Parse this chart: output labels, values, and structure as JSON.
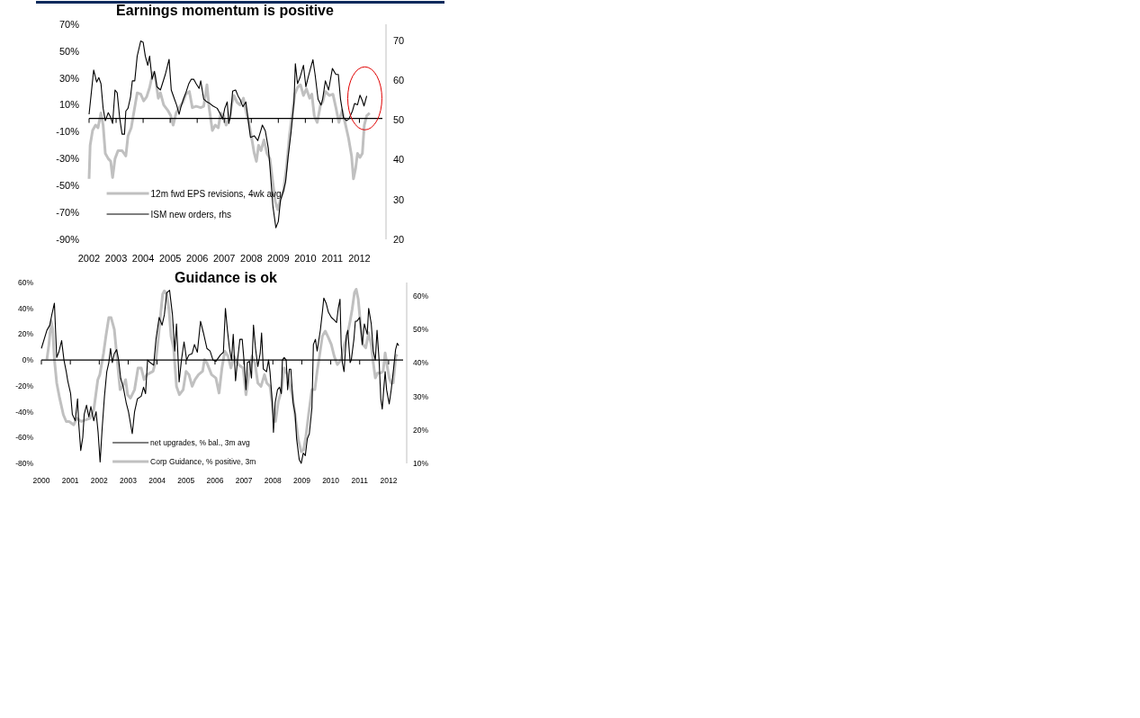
{
  "chart_data": [
    {
      "type": "line",
      "title": "Earnings momentum is positive",
      "xlim": [
        2002,
        2012.85
      ],
      "xticks": [
        2002,
        2003,
        2004,
        2005,
        2006,
        2007,
        2008,
        2009,
        2010,
        2011,
        2012
      ],
      "ylim": [
        -90,
        70
      ],
      "yticks": [
        {
          "value": 70,
          "label": "70%"
        },
        {
          "value": 50,
          "label": "50%"
        },
        {
          "value": 30,
          "label": "30%"
        },
        {
          "value": 10,
          "label": "10%"
        },
        {
          "value": -10,
          "label": "-10%"
        },
        {
          "value": -30,
          "label": "-30%"
        },
        {
          "value": -50,
          "label": "-50%"
        },
        {
          "value": -70,
          "label": "-70%"
        },
        {
          "value": -90,
          "label": "-90%"
        }
      ],
      "y2lim": [
        20,
        74
      ],
      "y2ticks": [
        20,
        30,
        40,
        50,
        60,
        70
      ],
      "legend": "bottom left",
      "series": [
        {
          "name": "12m fwd EPS revisions, 4wk avg",
          "color": "#c0c0c0",
          "x": [
            2002.0,
            2002.04,
            2002.13,
            2002.24,
            2002.33,
            2002.44,
            2002.52,
            2002.6,
            2002.71,
            2002.8,
            2002.87,
            2002.96,
            2003.07,
            2003.22,
            2003.36,
            2003.44,
            2003.56,
            2003.67,
            2003.78,
            2003.91,
            2004.02,
            2004.13,
            2004.24,
            2004.36,
            2004.44,
            2004.56,
            2004.64,
            2004.76,
            2004.91,
            2005.02,
            2005.11,
            2005.22,
            2005.33,
            2005.47,
            2005.58,
            2005.71,
            2005.82,
            2005.96,
            2006.13,
            2006.24,
            2006.36,
            2006.44,
            2006.56,
            2006.67,
            2006.78,
            2006.87,
            2006.98,
            2007.07,
            2007.19,
            2007.27,
            2007.36,
            2007.47,
            2007.58,
            2007.71,
            2007.82,
            2007.91,
            2008.0,
            2008.11,
            2008.19,
            2008.27,
            2008.36,
            2008.47,
            2008.58,
            2008.69,
            2008.78,
            2008.89,
            2008.98,
            2009.08,
            2009.19,
            2009.3,
            2009.41,
            2009.52,
            2009.61,
            2009.71,
            2009.82,
            2009.93,
            2010.04,
            2010.16,
            2010.24,
            2010.33,
            2010.44,
            2010.56,
            2010.64,
            2010.74,
            2010.89,
            2011.02,
            2011.13,
            2011.24,
            2011.36,
            2011.49,
            2011.6,
            2011.71,
            2011.78,
            2011.86,
            2011.93,
            2012.02,
            2012.11,
            2012.18,
            2012.27,
            2012.38
          ],
          "values": [
            -45,
            -20,
            -9,
            -5,
            -7,
            4,
            -5,
            -26,
            -30,
            -32,
            -44,
            -30,
            -24,
            -24,
            -28,
            -13,
            -7,
            6,
            19,
            18,
            13,
            16,
            23,
            34,
            32,
            15,
            19,
            10,
            6,
            2,
            -5,
            4,
            8,
            12,
            18,
            20,
            8,
            9,
            8,
            9,
            25,
            8,
            -9,
            -5,
            -7,
            4,
            2,
            -5,
            0,
            10,
            17,
            12,
            10,
            15,
            4,
            -3,
            -13,
            -26,
            -32,
            -20,
            -24,
            -16,
            -26,
            -30,
            -45,
            -62,
            -68,
            -60,
            -54,
            -37,
            -13,
            4,
            18,
            23,
            25,
            17,
            22,
            15,
            18,
            2,
            -3,
            10,
            12,
            20,
            17,
            18,
            8,
            -3,
            6,
            -5,
            -15,
            -28,
            -45,
            -37,
            -26,
            -29,
            -26,
            -5,
            2,
            4
          ]
        },
        {
          "name": "ISM new orders, rhs",
          "color": "#000000",
          "axis": "y2",
          "x": [
            2002.0,
            2002.17,
            2002.28,
            2002.36,
            2002.44,
            2002.52,
            2002.6,
            2002.71,
            2002.8,
            2002.87,
            2002.96,
            2003.04,
            2003.13,
            2003.22,
            2003.31,
            2003.36,
            2003.44,
            2003.53,
            2003.6,
            2003.69,
            2003.78,
            2003.91,
            2004.0,
            2004.08,
            2004.17,
            2004.24,
            2004.33,
            2004.42,
            2004.51,
            2004.64,
            2004.82,
            2004.96,
            2005.04,
            2005.16,
            2005.24,
            2005.33,
            2005.4,
            2005.49,
            2005.58,
            2005.69,
            2005.78,
            2005.87,
            2005.96,
            2006.07,
            2006.13,
            2006.24,
            2006.36,
            2006.47,
            2006.58,
            2006.74,
            2006.86,
            2006.94,
            2007.02,
            2007.11,
            2007.17,
            2007.24,
            2007.31,
            2007.42,
            2007.51,
            2007.58,
            2007.69,
            2007.8,
            2007.89,
            2007.97,
            2008.11,
            2008.24,
            2008.36,
            2008.41,
            2008.52,
            2008.63,
            2008.69,
            2008.8,
            2008.91,
            2009.0,
            2009.08,
            2009.19,
            2009.27,
            2009.36,
            2009.47,
            2009.58,
            2009.63,
            2009.71,
            2009.8,
            2009.93,
            2010.02,
            2010.1,
            2010.19,
            2010.28,
            2010.36,
            2010.47,
            2010.58,
            2010.64,
            2010.74,
            2010.86,
            2011.0,
            2011.13,
            2011.22,
            2011.3,
            2011.41,
            2011.52,
            2011.61,
            2011.74,
            2011.82,
            2011.93,
            2012.02,
            2012.11,
            2012.17,
            2012.27
          ],
          "values": [
            51.4,
            62.5,
            59.5,
            60.6,
            59.1,
            52.9,
            49.8,
            51.8,
            50.6,
            49.1,
            57.5,
            56.8,
            50.6,
            46.4,
            46.4,
            52.2,
            52.9,
            55.6,
            59.8,
            59.8,
            66,
            69.8,
            69.5,
            66,
            63.7,
            66,
            60.2,
            62.2,
            58.3,
            57.5,
            61.4,
            65.2,
            57.5,
            55.2,
            53.7,
            51.4,
            53.3,
            55.2,
            56.8,
            59.1,
            60.2,
            60.2,
            59.1,
            57.9,
            59.8,
            55.2,
            54.5,
            54.1,
            53.5,
            52.9,
            51.4,
            50.2,
            52.9,
            54.5,
            49.1,
            51.4,
            57.2,
            57.5,
            56,
            55.2,
            53.3,
            54.5,
            49.8,
            45.6,
            46,
            44.8,
            47.5,
            48.7,
            47.2,
            42.9,
            38.3,
            28.3,
            22.9,
            24.5,
            29.8,
            32.2,
            34.5,
            40.6,
            46.8,
            54.5,
            64.1,
            59.1,
            60.6,
            63.7,
            58.3,
            60.6,
            62.9,
            65.1,
            61.4,
            55.2,
            53.7,
            55.2,
            59.8,
            57.5,
            62.9,
            61.4,
            61.4,
            55.2,
            50.6,
            49.8,
            50.2,
            52.2,
            54.1,
            53.8,
            56.2,
            54.8,
            53.5,
            56
          ]
        }
      ]
    },
    {
      "type": "line",
      "title": "Guidance is ok",
      "xlim": [
        2000,
        2012.5
      ],
      "xticks": [
        2000,
        2001,
        2002,
        2003,
        2004,
        2005,
        2006,
        2007,
        2008,
        2009,
        2010,
        2011,
        2012
      ],
      "ylim": [
        -80,
        60
      ],
      "yticks": [
        {
          "value": 60,
          "label": "60%"
        },
        {
          "value": 40,
          "label": "40%"
        },
        {
          "value": 20,
          "label": "20%"
        },
        {
          "value": 0,
          "label": "0%"
        },
        {
          "value": -20,
          "label": "-20%"
        },
        {
          "value": -40,
          "label": "-40%"
        },
        {
          "value": -60,
          "label": "-60%"
        },
        {
          "value": -80,
          "label": "-80%"
        }
      ],
      "y2lim": [
        10,
        64
      ],
      "y2ticks": [
        {
          "value": 60,
          "label": "60%"
        },
        {
          "value": 50,
          "label": "50%"
        },
        {
          "value": 40,
          "label": "40%"
        },
        {
          "value": 30,
          "label": "30%"
        },
        {
          "value": 20,
          "label": "20%"
        },
        {
          "value": 10,
          "label": "10%"
        }
      ],
      "legend": "bottom left",
      "series": [
        {
          "name": "net upgrades, % bal., 3m avg",
          "color": "#000000",
          "x": [
            2000.0,
            2000.19,
            2000.29,
            2000.36,
            2000.45,
            2000.53,
            2000.6,
            2000.7,
            2000.78,
            2000.86,
            2000.91,
            2001.01,
            2001.07,
            2001.17,
            2001.25,
            2001.29,
            2001.36,
            2001.43,
            2001.48,
            2001.56,
            2001.64,
            2001.71,
            2001.81,
            2001.89,
            2001.96,
            2002.03,
            2002.1,
            2002.18,
            2002.26,
            2002.33,
            2002.39,
            2002.45,
            2002.52,
            2002.6,
            2002.67,
            2002.74,
            2002.83,
            2002.93,
            2003.01,
            2003.14,
            2003.22,
            2003.32,
            2003.45,
            2003.53,
            2003.6,
            2003.67,
            2003.76,
            2003.88,
            2003.96,
            2004.07,
            2004.17,
            2004.25,
            2004.33,
            2004.43,
            2004.53,
            2004.61,
            2004.67,
            2004.76,
            2004.84,
            2004.93,
            2005.02,
            2005.1,
            2005.21,
            2005.29,
            2005.39,
            2005.5,
            2005.6,
            2005.72,
            2005.83,
            2005.93,
            2006.03,
            2006.19,
            2006.29,
            2006.36,
            2006.43,
            2006.5,
            2006.57,
            2006.63,
            2006.71,
            2006.78,
            2006.86,
            2006.94,
            2007.02,
            2007.07,
            2007.12,
            2007.19,
            2007.26,
            2007.33,
            2007.4,
            2007.48,
            2007.56,
            2007.61,
            2007.67,
            2007.78,
            2007.85,
            2007.9,
            2007.98,
            2008.02,
            2008.08,
            2008.16,
            2008.23,
            2008.29,
            2008.33,
            2008.39,
            2008.46,
            2008.51,
            2008.57,
            2008.62,
            2008.7,
            2008.77,
            2008.82,
            2008.91,
            2008.98,
            2009.05,
            2009.12,
            2009.19,
            2009.26,
            2009.35,
            2009.4,
            2009.47,
            2009.53,
            2009.64,
            2009.71,
            2009.76,
            2009.84,
            2009.92,
            2010.02,
            2010.12,
            2010.2,
            2010.26,
            2010.32,
            2010.36,
            2010.4,
            2010.46,
            2010.54,
            2010.59,
            2010.67,
            2010.71,
            2010.8,
            2010.85,
            2010.9,
            2011.0,
            2011.09,
            2011.16,
            2011.26,
            2011.31,
            2011.4,
            2011.47,
            2011.54,
            2011.6,
            2011.67,
            2011.73,
            2011.78,
            2011.83,
            2011.88,
            2011.93,
            2012.02,
            2012.09,
            2012.16,
            2012.24,
            2012.3,
            2012.35
          ],
          "values": [
            9,
            23,
            27,
            35,
            44,
            2,
            6,
            15,
            0,
            -9,
            -16,
            -26,
            -42,
            -47,
            -30,
            -49,
            -70,
            -60,
            -42,
            -35,
            -44,
            -36,
            -47,
            -40,
            -56,
            -79,
            -53,
            -28,
            -9,
            -2,
            9,
            -2,
            5,
            8,
            0,
            -14,
            -21,
            -33,
            -40,
            -57,
            -40,
            -30,
            -28,
            -21,
            -26,
            0,
            -2,
            -4,
            16,
            33,
            27,
            35,
            52,
            54,
            35,
            7,
            28,
            -17,
            0,
            14,
            0,
            4,
            5,
            12,
            6,
            30,
            21,
            9,
            7,
            0,
            -1,
            4,
            6,
            40,
            23,
            9,
            0,
            20,
            -16,
            0,
            16,
            16,
            -5,
            -23,
            -2,
            -1,
            -14,
            27,
            9,
            -5,
            5,
            21,
            -7,
            -9,
            0,
            -9,
            -33,
            -56,
            -33,
            -23,
            -21,
            -26,
            0,
            2,
            0,
            -23,
            -7,
            -7,
            -33,
            -42,
            -61,
            -77,
            -80,
            -72,
            -74,
            -61,
            -57,
            -37,
            12,
            16,
            7,
            23,
            37,
            48,
            44,
            37,
            33,
            31,
            29,
            40,
            47,
            12,
            -2,
            -9,
            19,
            23,
            -2,
            0,
            16,
            30,
            30,
            33,
            12,
            28,
            20,
            40,
            28,
            7,
            0,
            23,
            0,
            -30,
            -38,
            -23,
            -9,
            -23,
            -34,
            -23,
            -9,
            8,
            13,
            11
          ]
        },
        {
          "name": "Corp Guidance, % positive, 3m",
          "color": "#c0c0c0",
          "axis": "y2",
          "x": [
            2000.19,
            2000.26,
            2000.34,
            2000.39,
            2000.45,
            2000.53,
            2000.63,
            2000.76,
            2000.86,
            2000.96,
            2001.12,
            2001.22,
            2001.38,
            2001.53,
            2001.69,
            2001.81,
            2001.95,
            2002.02,
            2002.15,
            2002.23,
            2002.33,
            2002.41,
            2002.52,
            2002.62,
            2002.72,
            2002.81,
            2002.91,
            2002.98,
            2003.08,
            2003.22,
            2003.34,
            2003.45,
            2003.55,
            2003.65,
            2003.86,
            2003.96,
            2004.05,
            2004.12,
            2004.19,
            2004.25,
            2004.33,
            2004.41,
            2004.48,
            2004.57,
            2004.67,
            2004.77,
            2004.9,
            2005.0,
            2005.1,
            2005.21,
            2005.31,
            2005.43,
            2005.57,
            2005.64,
            2005.72,
            2005.88,
            2006.03,
            2006.14,
            2006.24,
            2006.34,
            2006.45,
            2006.55,
            2006.66,
            2006.81,
            2006.97,
            2007.07,
            2007.17,
            2007.28,
            2007.38,
            2007.48,
            2007.59,
            2007.71,
            2007.79,
            2007.9,
            2008.0,
            2008.09,
            2008.19,
            2008.29,
            2008.39,
            2008.5,
            2008.57,
            2008.67,
            2008.78,
            2008.88,
            2008.98,
            2009.06,
            2009.14,
            2009.24,
            2009.35,
            2009.45,
            2009.53,
            2009.61,
            2009.71,
            2009.81,
            2009.92,
            2010.02,
            2010.12,
            2010.23,
            2010.36,
            2010.47,
            2010.57,
            2010.67,
            2010.74,
            2010.82,
            2010.88,
            2010.95,
            2011.03,
            2011.11,
            2011.21,
            2011.31,
            2011.4,
            2011.47,
            2011.54,
            2011.62,
            2011.73,
            2011.81,
            2011.88,
            2011.96,
            2012.02,
            2012.09,
            2012.16,
            2012.25,
            2012.3
          ],
          "values": [
            41,
            45.5,
            52.5,
            50,
            41,
            34,
            29.5,
            24.5,
            22.5,
            22.5,
            21.5,
            23.5,
            22.5,
            23,
            23.5,
            26,
            35,
            36.5,
            43,
            48,
            53.5,
            53.5,
            50,
            41,
            32,
            33,
            35,
            30.5,
            29.5,
            32,
            38.5,
            38.5,
            35,
            36.5,
            37.5,
            41,
            48,
            54.5,
            60.5,
            61.5,
            60.5,
            56,
            48,
            44.5,
            33,
            30.5,
            32,
            37.5,
            36.5,
            33,
            35,
            36.5,
            37.5,
            41,
            40,
            36.5,
            35.5,
            31,
            38.5,
            43.5,
            42,
            38.5,
            42,
            39.5,
            38.5,
            30.5,
            36.5,
            42,
            40,
            34,
            33,
            36.5,
            34,
            33,
            26,
            22.5,
            28.5,
            31.5,
            38.5,
            36.5,
            34,
            30.5,
            23.5,
            17,
            13.5,
            14,
            18,
            25,
            32,
            32,
            37.5,
            42,
            48,
            49.5,
            47.5,
            45.5,
            42,
            39.5,
            41,
            45.5,
            48,
            52.5,
            56,
            61,
            62,
            59,
            51.5,
            45.5,
            44.5,
            49,
            45.5,
            40,
            35.5,
            37,
            37,
            37.5,
            43,
            38.5,
            35.5,
            34,
            34,
            42,
            42.5
          ]
        }
      ]
    }
  ]
}
